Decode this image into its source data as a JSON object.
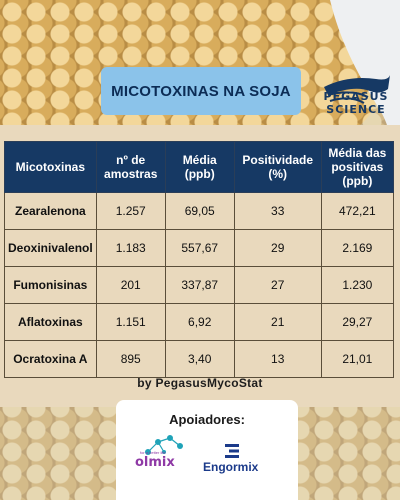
{
  "title": "MICOTOXINAS NA SOJA",
  "logo": {
    "line1": "PEGASUS",
    "line2": "SCIENCE"
  },
  "table": {
    "headers": [
      "Micotoxinas",
      "nº de amostras",
      "Média (ppb)",
      "Positividade (%)",
      "Média das positivas (ppb)"
    ],
    "rows": [
      [
        "Zearalenona",
        "1.257",
        "69,05",
        "33",
        "472,21"
      ],
      [
        "Deoxinivalenol",
        "1.183",
        "557,67",
        "29",
        "2.169"
      ],
      [
        "Fumonisinas",
        "201",
        "337,87",
        "27",
        "1.230"
      ],
      [
        "Aflatoxinas",
        "1.151",
        "6,92",
        "21",
        "29,27"
      ],
      [
        "Ocratoxina A",
        "895",
        "3,40",
        "13",
        "21,01"
      ]
    ]
  },
  "source": "by PegasusMycoStat",
  "supporters": {
    "label": "Apoiadores:",
    "logos": [
      {
        "name": "olmix",
        "tagline": "for a better life"
      },
      {
        "name": "Engormix"
      }
    ]
  }
}
